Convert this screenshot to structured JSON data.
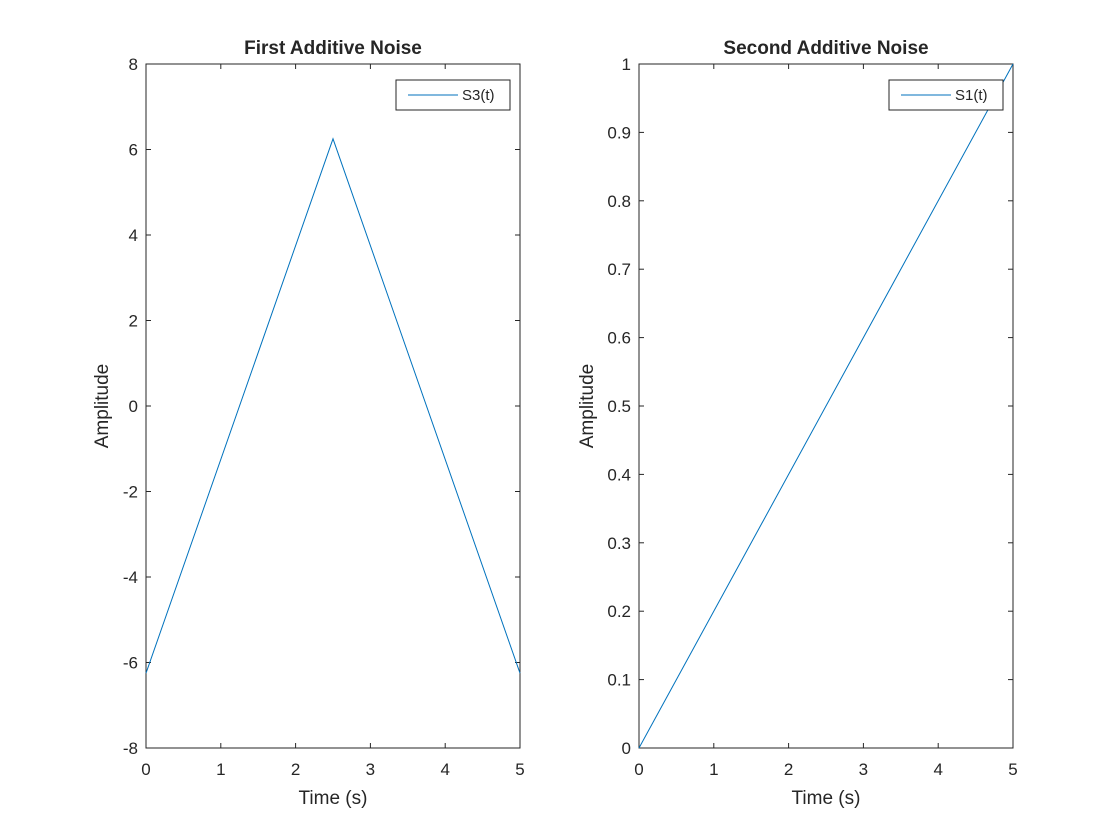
{
  "chart_data": [
    {
      "type": "line",
      "title": "First Additive Noise",
      "xlabel": "Time (s)",
      "ylabel": "Amplitude",
      "xlim": [
        0,
        5
      ],
      "ylim": [
        -8,
        8
      ],
      "xticks": [
        "0",
        "1",
        "2",
        "3",
        "4",
        "5"
      ],
      "yticks": [
        "-8",
        "-6",
        "-4",
        "-2",
        "0",
        "2",
        "4",
        "6",
        "8"
      ],
      "grid": false,
      "legend_position": "top-right",
      "series": [
        {
          "name": "S3(t)",
          "color": "#0072BD",
          "x": [
            0,
            2.5,
            5
          ],
          "y": [
            -6.25,
            6.25,
            -6.25
          ]
        }
      ]
    },
    {
      "type": "line",
      "title": "Second Additive Noise",
      "xlabel": "Time (s)",
      "ylabel": "Amplitude",
      "xlim": [
        0,
        5
      ],
      "ylim": [
        0,
        1
      ],
      "xticks": [
        "0",
        "1",
        "2",
        "3",
        "4",
        "5"
      ],
      "yticks": [
        "0",
        "0.1",
        "0.2",
        "0.3",
        "0.4",
        "0.5",
        "0.6",
        "0.7",
        "0.8",
        "0.9",
        "1"
      ],
      "grid": false,
      "legend_position": "top-right",
      "series": [
        {
          "name": "S1(t)",
          "color": "#0072BD",
          "x": [
            0,
            5
          ],
          "y": [
            0,
            1
          ]
        }
      ]
    }
  ]
}
